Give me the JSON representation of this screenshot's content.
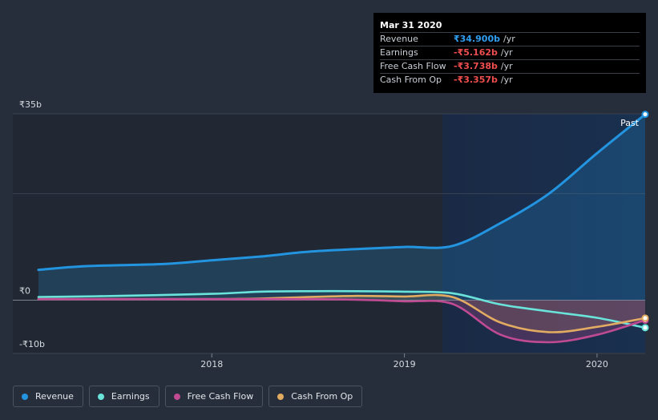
{
  "colors": {
    "background": "#262e3b",
    "revenue": "#2394df",
    "earnings": "#6ae4da",
    "free_cash_flow": "#c04b92",
    "cash_from_op": "#e2ab62",
    "negative_value": "#f04e4e",
    "positive_value": "#2f9ef0"
  },
  "tooltip": {
    "date": "Mar 31 2020",
    "rows": [
      {
        "label": "Revenue",
        "value": "₹34.900b",
        "unit": "/yr",
        "color": "#2f9ef0"
      },
      {
        "label": "Earnings",
        "value": "-₹5.162b",
        "unit": "/yr",
        "color": "#f04e4e"
      },
      {
        "label": "Free Cash Flow",
        "value": "-₹3.738b",
        "unit": "/yr",
        "color": "#f04e4e"
      },
      {
        "label": "Cash From Op",
        "value": "-₹3.357b",
        "unit": "/yr",
        "color": "#f04e4e"
      }
    ]
  },
  "legend": [
    {
      "label": "Revenue",
      "color": "#2394df",
      "icon": "revenue-dot-icon"
    },
    {
      "label": "Earnings",
      "color": "#6ae4da",
      "icon": "earnings-dot-icon"
    },
    {
      "label": "Free Cash Flow",
      "color": "#c04b92",
      "icon": "free-cash-flow-dot-icon"
    },
    {
      "label": "Cash From Op",
      "color": "#e2ab62",
      "icon": "cash-from-op-dot-icon"
    }
  ],
  "chart_data": {
    "type": "area",
    "title": "",
    "xlabel": "",
    "ylabel": "",
    "x_unit": "year",
    "y_unit": "₹ billions",
    "ylim": [
      -10,
      35
    ],
    "xlim": [
      2017.1,
      2020.25
    ],
    "y_ticks": [
      {
        "value": 35,
        "label": "₹35b"
      },
      {
        "value": 0,
        "label": "₹0"
      },
      {
        "value": -10,
        "label": "-₹10b"
      }
    ],
    "x_ticks": [
      {
        "value": 2018,
        "label": "2018"
      },
      {
        "value": 2019,
        "label": "2019"
      },
      {
        "value": 2020,
        "label": "2020"
      }
    ],
    "past_marker": {
      "label": "Past",
      "from_x": 2019.25
    },
    "grid": true,
    "legend_position": "bottom-left",
    "series": [
      {
        "name": "Revenue",
        "key": "revenue",
        "fill": true,
        "points": [
          [
            2017.1,
            5.7
          ],
          [
            2017.35,
            6.4
          ],
          [
            2017.75,
            6.8
          ],
          [
            2018.0,
            7.5
          ],
          [
            2018.25,
            8.2
          ],
          [
            2018.5,
            9.1
          ],
          [
            2018.75,
            9.6
          ],
          [
            2019.0,
            10.0
          ],
          [
            2019.25,
            10.2
          ],
          [
            2019.5,
            14.5
          ],
          [
            2019.75,
            20.0
          ],
          [
            2020.0,
            27.6
          ],
          [
            2020.25,
            34.9
          ]
        ]
      },
      {
        "name": "Earnings",
        "key": "earnings",
        "points": [
          [
            2017.1,
            0.6
          ],
          [
            2017.5,
            0.8
          ],
          [
            2018.0,
            1.2
          ],
          [
            2018.25,
            1.6
          ],
          [
            2018.5,
            1.7
          ],
          [
            2018.75,
            1.7
          ],
          [
            2019.0,
            1.6
          ],
          [
            2019.25,
            1.3
          ],
          [
            2019.5,
            -0.8
          ],
          [
            2019.75,
            -2.1
          ],
          [
            2020.0,
            -3.3
          ],
          [
            2020.25,
            -5.162
          ]
        ]
      },
      {
        "name": "Free Cash Flow",
        "key": "free_cash_flow",
        "fill": true,
        "points": [
          [
            2017.1,
            0.2
          ],
          [
            2017.5,
            0.2
          ],
          [
            2018.0,
            0.2
          ],
          [
            2018.25,
            0.2
          ],
          [
            2018.5,
            0.2
          ],
          [
            2018.75,
            0.1
          ],
          [
            2019.0,
            -0.2
          ],
          [
            2019.25,
            -0.7
          ],
          [
            2019.5,
            -6.5
          ],
          [
            2019.75,
            -7.9
          ],
          [
            2020.0,
            -6.5
          ],
          [
            2020.25,
            -3.738
          ]
        ]
      },
      {
        "name": "Cash From Op",
        "key": "cash_from_op",
        "fill": true,
        "points": [
          [
            2017.1,
            0.2
          ],
          [
            2017.5,
            0.2
          ],
          [
            2018.0,
            0.2
          ],
          [
            2018.25,
            0.3
          ],
          [
            2018.5,
            0.6
          ],
          [
            2018.75,
            0.8
          ],
          [
            2019.0,
            0.7
          ],
          [
            2019.25,
            0.6
          ],
          [
            2019.5,
            -4.2
          ],
          [
            2019.75,
            -6.0
          ],
          [
            2020.0,
            -5.0
          ],
          [
            2020.25,
            -3.357
          ]
        ]
      }
    ]
  }
}
